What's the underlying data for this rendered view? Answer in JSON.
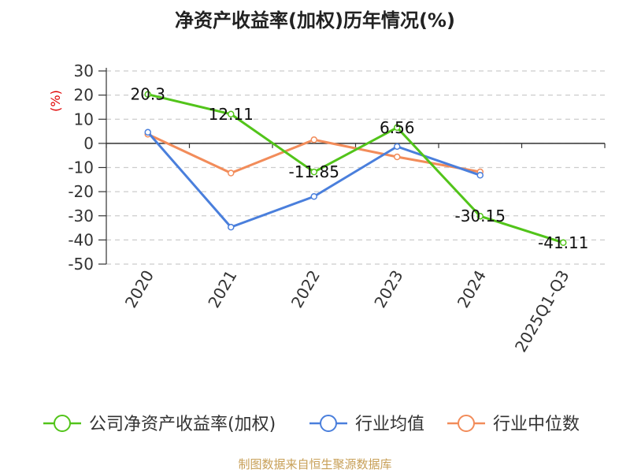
{
  "chart_data": {
    "type": "line",
    "title": "净资产收益率(加权)历年情况(%)",
    "ylabel": "(%)",
    "ylim": [
      -50,
      30
    ],
    "yticks": [
      30,
      20,
      10,
      0,
      -10,
      -20,
      -30,
      -40,
      -50
    ],
    "categories": [
      "2020",
      "2021",
      "2022",
      "2023",
      "2024",
      "2025Q1-Q3"
    ],
    "grid": true,
    "legend_position": "bottom",
    "series": [
      {
        "name": "公司净资产收益率(加权)",
        "color": "#52c41a",
        "values": [
          20.3,
          12.11,
          -11.85,
          6.56,
          -30.15,
          -41.11
        ],
        "labels": [
          "20.3",
          "12.11",
          "-11.85",
          "6.56",
          "-30.15",
          "-41.11"
        ]
      },
      {
        "name": "行业均值",
        "color": "#4a7fdc",
        "values": [
          4.6,
          -34.7,
          -22.0,
          -1.3,
          -13.2,
          null
        ]
      },
      {
        "name": "行业中位数",
        "color": "#f28c5a",
        "values": [
          3.8,
          -12.3,
          1.5,
          -5.6,
          -11.8,
          null
        ]
      }
    ],
    "source": "制图数据来自恒生聚源数据库"
  }
}
